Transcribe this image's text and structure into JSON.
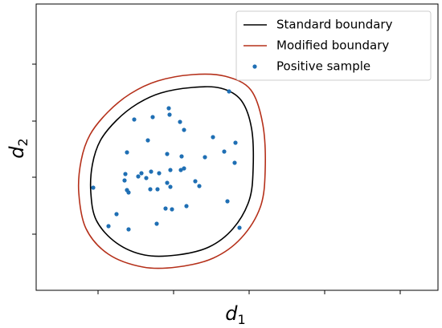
{
  "chart_data": {
    "type": "scatter",
    "xlabel": {
      "main": "d",
      "sub": "1"
    },
    "ylabel": {
      "main": "d",
      "sub": "2"
    },
    "xlim": [
      0,
      50
    ],
    "ylim": [
      0,
      35.7
    ],
    "xticks": [
      7.7,
      17.1,
      26.5,
      35.9,
      45.3
    ],
    "yticks": [
      7.0,
      14.1,
      21.1,
      28.2
    ],
    "legend": "upper right",
    "series": [
      {
        "name": "Standard boundary",
        "type": "line",
        "color": "#000000",
        "x": [
          6.8,
          7.0,
          8.0,
          10.0,
          12.5,
          15.5,
          19.5,
          23.0,
          25.5,
          26.8,
          27.0,
          26.5,
          24.5,
          21.5,
          17.5,
          13.5,
          10.0,
          7.5,
          6.8
        ],
        "y": [
          12.2,
          15.7,
          18.7,
          21.2,
          23.2,
          24.6,
          25.3,
          25.2,
          23.7,
          20.2,
          15.2,
          11.2,
          7.7,
          5.4,
          4.4,
          4.4,
          5.9,
          8.7,
          12.2
        ]
      },
      {
        "name": "Modified boundary",
        "type": "line",
        "color": "#b5301a",
        "x": [
          5.3,
          5.6,
          6.7,
          8.9,
          11.7,
          15.1,
          19.5,
          23.5,
          26.7,
          28.2,
          28.5,
          27.9,
          25.5,
          22.0,
          17.5,
          13.3,
          9.0,
          6.2,
          5.3
        ],
        "y": [
          12.2,
          16.2,
          19.4,
          22.2,
          24.5,
          26.1,
          26.9,
          26.7,
          25.0,
          20.7,
          15.0,
          10.4,
          6.5,
          4.0,
          2.9,
          2.9,
          4.5,
          7.7,
          12.2
        ]
      },
      {
        "name": "Positive sample",
        "type": "scatter",
        "color": "#1f6fb4",
        "x": [
          24.0,
          12.2,
          16.5,
          14.5,
          16.6,
          17.9,
          18.4,
          13.9,
          11.3,
          22.0,
          23.4,
          24.8,
          16.3,
          18.1,
          21.0,
          24.7,
          11.1,
          13.1,
          14.3,
          15.3,
          16.7,
          18.0,
          18.4,
          11.0,
          12.7,
          13.7,
          16.3,
          19.8,
          20.3,
          7.1,
          11.3,
          11.5,
          14.2,
          15.1,
          16.7,
          23.8,
          16.1,
          16.9,
          18.7,
          10.0,
          11.5,
          9.0,
          15.0,
          25.3
        ],
        "y": [
          24.8,
          21.3,
          22.7,
          21.6,
          21.9,
          21.0,
          20.0,
          18.7,
          17.2,
          19.1,
          17.3,
          18.4,
          17.0,
          16.7,
          16.6,
          15.9,
          14.5,
          14.6,
          14.8,
          14.6,
          15.0,
          15.0,
          15.2,
          13.7,
          14.2,
          14.0,
          13.4,
          13.6,
          13.0,
          12.8,
          12.5,
          12.2,
          12.6,
          12.6,
          12.9,
          11.1,
          10.2,
          10.1,
          10.5,
          9.5,
          7.6,
          8.0,
          8.3,
          7.8
        ]
      }
    ]
  }
}
